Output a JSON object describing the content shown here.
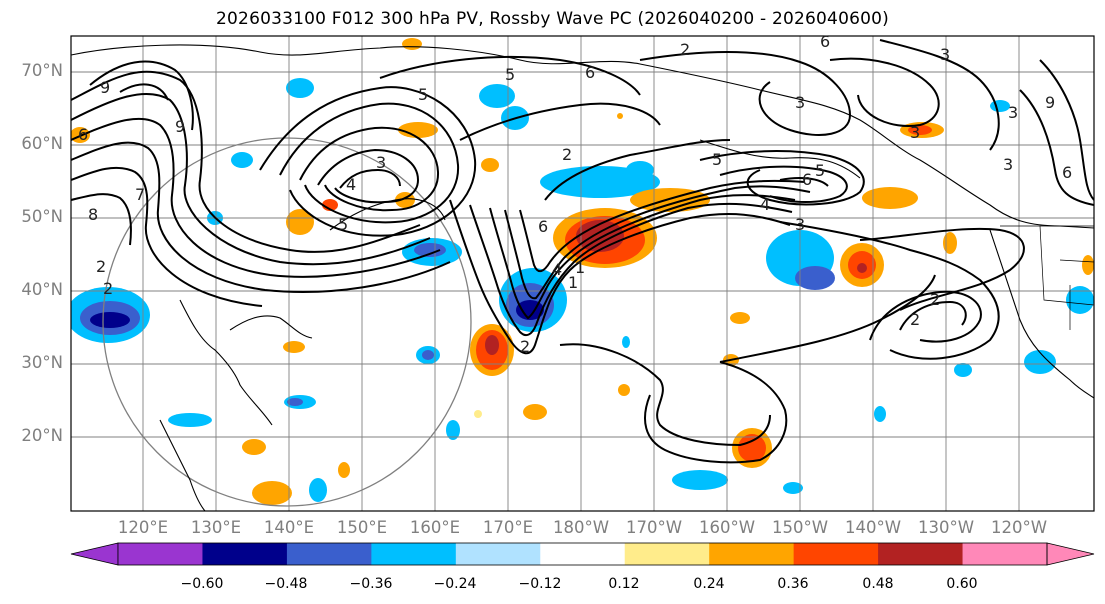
{
  "title": "2026033100 F012 300 hPa PV, Rossby Wave PC (2026040200 - 2026040600)",
  "lat_labels": [
    "70°N",
    "60°N",
    "50°N",
    "40°N",
    "30°N",
    "20°N"
  ],
  "lon_labels": [
    "120°E",
    "130°E",
    "140°E",
    "150°E",
    "160°E",
    "170°E",
    "180°W",
    "170°W",
    "160°W",
    "150°W",
    "140°W",
    "130°W",
    "120°W"
  ],
  "colorbar": {
    "ticks": [
      "−0.60",
      "−0.48",
      "−0.36",
      "−0.24",
      "−0.12",
      "0.12",
      "0.24",
      "0.36",
      "0.48",
      "0.60"
    ],
    "colors": [
      "#9a35d0",
      "#00008b",
      "#3a5fcd",
      "#00bfff",
      "#b0e2ff",
      "#ffffff",
      "#ffec8b",
      "#ffa500",
      "#ff4500",
      "#b22222",
      "#ff88b8"
    ]
  },
  "contour_labels": [
    "9",
    "9",
    "6",
    "7",
    "8",
    "2",
    "5",
    "6",
    "2",
    "3",
    "4",
    "5",
    "5",
    "2",
    "6",
    "2",
    "1",
    "4",
    "3",
    "5",
    "6",
    "5",
    "3",
    "4",
    "3",
    "2",
    "2",
    "3",
    "3",
    "6",
    "6",
    "9",
    "3",
    "1",
    "2"
  ]
}
